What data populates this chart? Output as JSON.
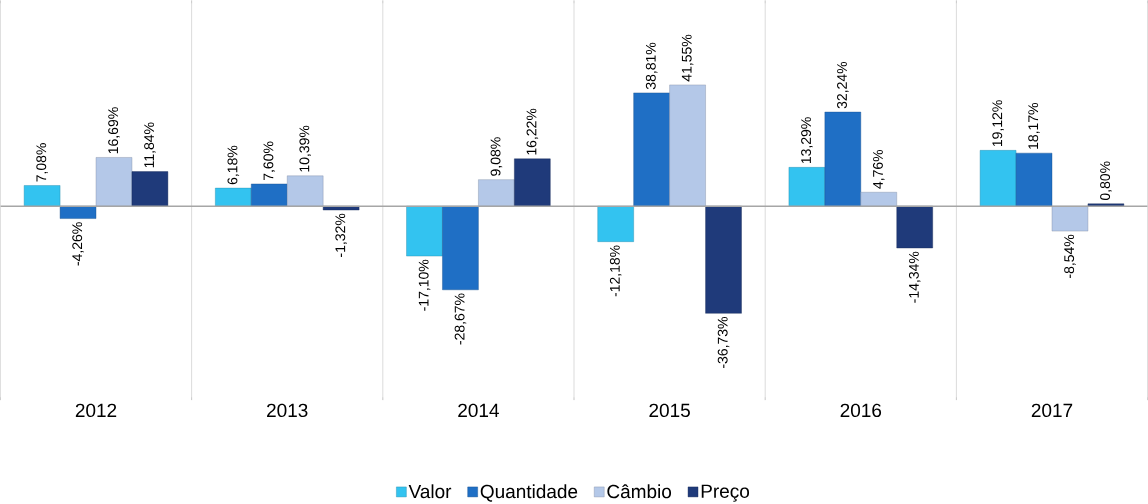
{
  "chart_data": {
    "type": "bar",
    "categories": [
      "2012",
      "2013",
      "2014",
      "2015",
      "2016",
      "2017"
    ],
    "series": [
      {
        "name": "Valor",
        "color": "#33c3f0",
        "values": [
          7.08,
          6.18,
          -17.1,
          -12.18,
          13.29,
          19.12
        ],
        "value_labels": [
          "7,08%",
          "6,18%",
          "-17,10%",
          "-12,18%",
          "13,29%",
          "19,12%"
        ]
      },
      {
        "name": "Quantidade",
        "color": "#1f6fc5",
        "values": [
          -4.26,
          7.6,
          -28.67,
          38.81,
          32.24,
          18.17
        ],
        "value_labels": [
          "-4,26%",
          "7,60%",
          "-28,67%",
          "38,81%",
          "32,24%",
          "18,17%"
        ]
      },
      {
        "name": "Câmbio",
        "color": "#b4c8e8",
        "values": [
          16.69,
          10.39,
          9.08,
          41.55,
          4.76,
          -8.54
        ],
        "value_labels": [
          "16,69%",
          "10,39%",
          "9,08%",
          "41,55%",
          "4,76%",
          "-8,54%"
        ]
      },
      {
        "name": "Preço",
        "color": "#1f3a7a",
        "values": [
          11.84,
          -1.32,
          16.22,
          -36.73,
          -14.34,
          0.8
        ],
        "value_labels": [
          "11,84%",
          "-1,32%",
          "16,22%",
          "-36,73%",
          "-14,34%",
          "0,80%"
        ]
      }
    ],
    "grid": "x",
    "legend": "bottom"
  }
}
